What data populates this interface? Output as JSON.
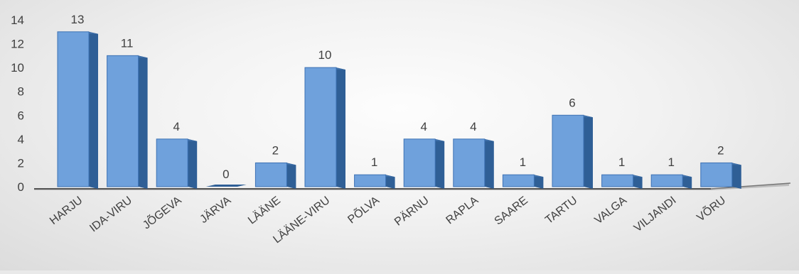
{
  "chart_data": {
    "type": "bar",
    "style": "3d-column",
    "categories": [
      "HARJU",
      "IDA-VIRU",
      "JÕGEVA",
      "JÄRVA",
      "LÄÄNE",
      "LÄÄNE-VIRU",
      "PÕLVA",
      "PÄRNU",
      "RAPLA",
      "SAARE",
      "TARTU",
      "VALGA",
      "VILJANDI",
      "VÕRU"
    ],
    "values": [
      13,
      11,
      4,
      0,
      2,
      10,
      1,
      4,
      4,
      1,
      6,
      1,
      1,
      2
    ],
    "title": "",
    "xlabel": "",
    "ylabel": "",
    "ylim": [
      0,
      14
    ],
    "yticks": [
      0,
      2,
      4,
      6,
      8,
      10,
      12,
      14
    ],
    "grid": false,
    "legend": "none",
    "data_labels": true,
    "colors": {
      "bar_front": "#6fa1dc",
      "bar_side": "#2f5f96",
      "bar_top": "#3e6fa8",
      "floor": "#a9a9a9",
      "text": "#404040"
    }
  }
}
